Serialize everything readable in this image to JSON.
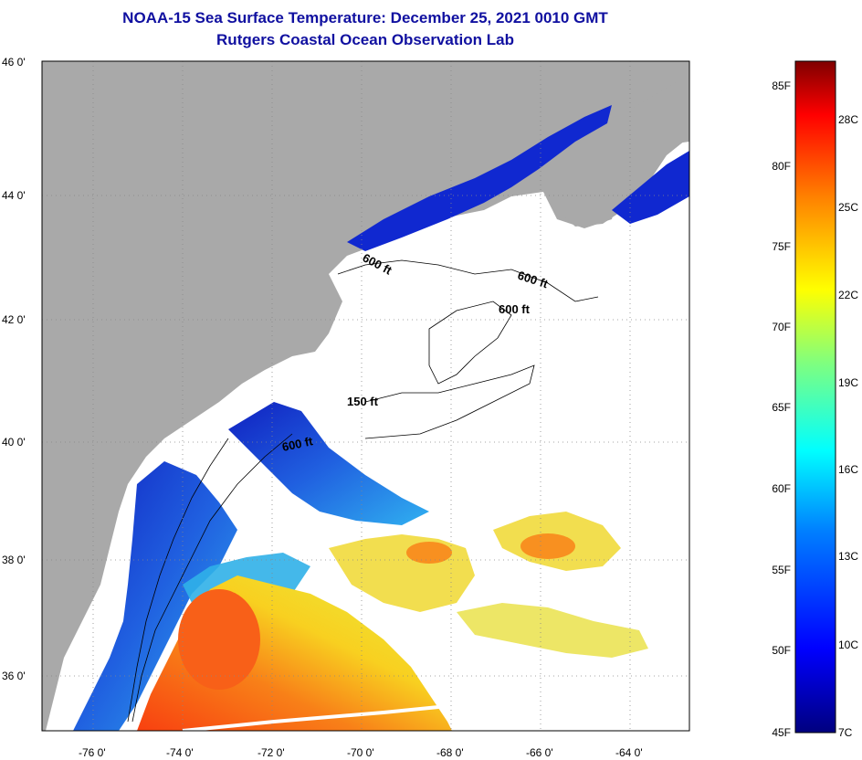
{
  "header": {
    "title": "NOAA-15 Sea Surface Temperature:  December 25, 2021 0010 GMT",
    "subtitle": "Rutgers Coastal Ocean Observation Lab"
  },
  "axes": {
    "lat_labels": [
      "46 0'",
      "44 0'",
      "42 0'",
      "40 0'",
      "38 0'",
      "36 0'"
    ],
    "lon_labels": [
      "-76 0'",
      "-74 0'",
      "-72 0'",
      "-70 0'",
      "-68 0'",
      "-66 0'",
      "-64 0'"
    ]
  },
  "contours": {
    "labels": [
      "600 ft",
      "600 ft",
      "600 ft",
      "150 ft",
      "600 ft"
    ]
  },
  "colorbar": {
    "fahrenheit": [
      "85F",
      "80F",
      "75F",
      "70F",
      "65F",
      "60F",
      "55F",
      "50F",
      "45F"
    ],
    "celsius": [
      "28C",
      "25C",
      "22C",
      "19C",
      "16C",
      "13C",
      "10C",
      "7C"
    ],
    "colors": [
      "#00007f",
      "#0000ff",
      "#007fff",
      "#00ffff",
      "#7fff7f",
      "#ffff00",
      "#ff7f00",
      "#ff0000",
      "#7f0000"
    ]
  },
  "map_colors": {
    "land": "#a9a9a9",
    "cloud": "#ffffff",
    "cold_water": "#1030d0",
    "mid_water": "#30a8f0",
    "warm_water": "#f8e020",
    "hot_water": "#f87010"
  }
}
